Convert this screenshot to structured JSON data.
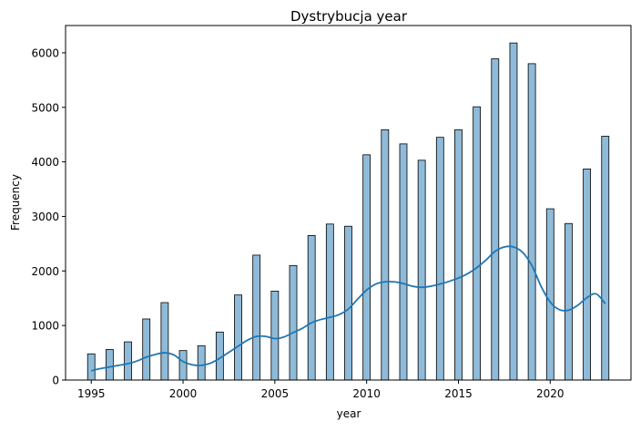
{
  "chart_data": {
    "type": "bar",
    "title": "Dystrybucja year",
    "xlabel": "year",
    "ylabel": "Frequency",
    "xlim": [
      1993.6,
      2024.4
    ],
    "ylim": [
      0,
      6500
    ],
    "x_ticks": [
      1995,
      2000,
      2005,
      2010,
      2015,
      2020
    ],
    "y_ticks": [
      0,
      1000,
      2000,
      3000,
      4000,
      5000,
      6000
    ],
    "grid": false,
    "bar_color": "#1f77b4",
    "bar_opacity": 0.5,
    "kde_color": "#1f77b4",
    "categories": [
      1995,
      1996,
      1997,
      1998,
      1999,
      2000,
      2001,
      2002,
      2003,
      2004,
      2005,
      2006,
      2007,
      2008,
      2009,
      2010,
      2011,
      2012,
      2013,
      2014,
      2015,
      2016,
      2017,
      2018,
      2019,
      2020,
      2021,
      2022,
      2023
    ],
    "values": [
      480,
      560,
      700,
      1120,
      1420,
      540,
      630,
      880,
      1560,
      2290,
      1630,
      2100,
      2650,
      2860,
      2820,
      4130,
      4590,
      4330,
      4030,
      4450,
      4590,
      5010,
      5890,
      6180,
      5800,
      3140,
      2870,
      3870,
      4470
    ],
    "kde": {
      "x": [
        1995,
        1995.5,
        1996,
        1996.5,
        1997,
        1997.5,
        1998,
        1998.5,
        1999,
        1999.5,
        2000,
        2000.5,
        2001,
        2001.5,
        2002,
        2002.5,
        2003,
        2003.5,
        2004,
        2004.5,
        2005,
        2005.5,
        2006,
        2006.5,
        2007,
        2007.5,
        2008,
        2008.5,
        2009,
        2009.5,
        2010,
        2010.5,
        2011,
        2011.5,
        2012,
        2012.5,
        2013,
        2013.5,
        2014,
        2014.5,
        2015,
        2015.5,
        2016,
        2016.5,
        2017,
        2017.5,
        2018,
        2018.5,
        2019,
        2019.5,
        2020,
        2020.5,
        2021,
        2021.5,
        2022,
        2022.5,
        2023
      ],
      "y": [
        170,
        210,
        240,
        270,
        300,
        350,
        420,
        470,
        500,
        460,
        340,
        280,
        270,
        310,
        400,
        510,
        620,
        730,
        800,
        800,
        760,
        790,
        870,
        950,
        1050,
        1110,
        1150,
        1200,
        1300,
        1480,
        1650,
        1760,
        1800,
        1800,
        1770,
        1720,
        1700,
        1720,
        1760,
        1810,
        1870,
        1950,
        2060,
        2200,
        2360,
        2440,
        2440,
        2340,
        2100,
        1720,
        1430,
        1290,
        1280,
        1370,
        1510,
        1580,
        1400
      ]
    }
  }
}
